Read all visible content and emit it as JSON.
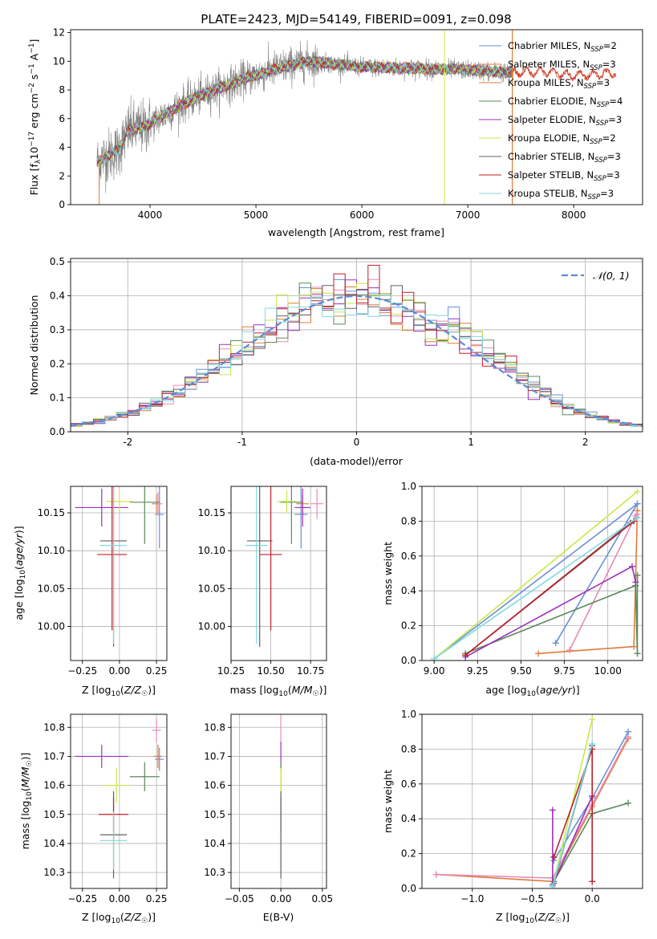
{
  "figure": {
    "title": "PLATE=2423, MJD=54149, FIBERID=0091, z=0.098"
  },
  "chart_data": [
    {
      "id": "spectrum",
      "type": "line",
      "xlabel": "wavelength [Angstrom, rest frame]",
      "ylabel_parts": [
        "Flux [f",
        "λ",
        "10",
        "−17",
        " erg cm",
        "−2",
        " s",
        "−1",
        " A",
        "−1",
        "]"
      ],
      "xlim": [
        3250,
        8650
      ],
      "ylim": [
        0,
        12.2
      ],
      "xticks": [
        4000,
        5000,
        6000,
        7000,
        8000
      ],
      "yticks": [
        0,
        2,
        4,
        6,
        8,
        10,
        12
      ],
      "continuum_model": [
        [
          3500,
          3.0
        ],
        [
          3700,
          3.8
        ],
        [
          3800,
          5.2
        ],
        [
          3950,
          5.4
        ],
        [
          4100,
          6.1
        ],
        [
          4300,
          7.0
        ],
        [
          4600,
          8.0
        ],
        [
          4900,
          8.8
        ],
        [
          5200,
          9.5
        ],
        [
          5500,
          10.0
        ],
        [
          6000,
          9.6
        ],
        [
          6500,
          9.5
        ],
        [
          7000,
          9.4
        ],
        [
          7400,
          9.2
        ],
        [
          7700,
          9.3
        ],
        [
          8000,
          9.0
        ],
        [
          8400,
          9.2
        ]
      ],
      "legend": [
        {
          "label": "Chabrier MILES, N",
          "sub": "SSP",
          "tail": "=2",
          "color": "#6a8fd8"
        },
        {
          "label": "Salpeter MILES, N",
          "sub": "SSP",
          "tail": "=3",
          "color": "#e07b39"
        },
        {
          "label": "Kroupa MILES, N",
          "sub": "SSP",
          "tail": "=3",
          "color": "#e07b39"
        },
        {
          "label": "Chabrier ELODIE, N",
          "sub": "SSP",
          "tail": "=4",
          "color": "#5a8a5a"
        },
        {
          "label": "Salpeter ELODIE, N",
          "sub": "SSP",
          "tail": "=3",
          "color": "#9b30b8"
        },
        {
          "label": "Kroupa ELODIE, N",
          "sub": "SSP",
          "tail": "=2",
          "color": "#c8e84a"
        },
        {
          "label": "Chabrier STELIB, N",
          "sub": "SSP",
          "tail": "=3",
          "color": "#606060"
        },
        {
          "label": "Salpeter STELIB, N",
          "sub": "SSP",
          "tail": "=3",
          "color": "#c0202a"
        },
        {
          "label": "Kroupa STELIB, N",
          "sub": "SSP",
          "tail": "=3",
          "color": "#80d8e0"
        }
      ]
    },
    {
      "id": "residuals",
      "type": "line",
      "xlabel": "(data-model)/error",
      "ylabel": "Normed distribution",
      "xlim": [
        -2.5,
        2.5
      ],
      "ylim": [
        0,
        0.51
      ],
      "xticks": [
        -2,
        -1,
        0,
        1,
        2
      ],
      "yticks": [
        0.0,
        0.1,
        0.2,
        0.3,
        0.4,
        0.5
      ],
      "ytick_labels": [
        "0.0",
        "0.1",
        "0.2",
        "0.3",
        "0.4",
        "0.5"
      ],
      "legend": "𝒩(0, 1)",
      "gaussian_color": "#5b8bd5",
      "step_colors": [
        "#6a8fd8",
        "#e07b39",
        "#e88ab8",
        "#5a8a5a",
        "#9b30b8",
        "#c8e84a",
        "#606060",
        "#c0202a",
        "#80d8e0"
      ]
    },
    {
      "id": "age_vs_Z",
      "type": "scatter",
      "xlabel": "Z [log10(Z/Z☉)]",
      "ylabel": "age  [log10(age/yr)]",
      "xlim": [
        -0.33,
        0.32
      ],
      "ylim": [
        9.955,
        10.185
      ],
      "xticks": [
        -0.25,
        0.0,
        0.25
      ],
      "xtick_labels": [
        "−0.25",
        "0.00",
        "0.25"
      ],
      "yticks": [
        10.0,
        10.05,
        10.1,
        10.15
      ],
      "ytick_labels": [
        "10.00",
        "10.05",
        "10.10",
        "10.15"
      ],
      "points": [
        {
          "x": 0.27,
          "y": 10.148,
          "xerr": 0.03,
          "yerr": 0.045,
          "color": "#6a8fd8"
        },
        {
          "x": 0.25,
          "y": 10.162,
          "xerr": 0.03,
          "yerr": 0.012,
          "color": "#e07b39"
        },
        {
          "x": 0.26,
          "y": 10.162,
          "xerr": 0.03,
          "yerr": 0.015,
          "color": "#e88ab8"
        },
        {
          "x": 0.17,
          "y": 10.164,
          "xerr": 0.1,
          "yerr": 0.055,
          "color": "#5a8a5a"
        },
        {
          "x": -0.12,
          "y": 10.157,
          "xerr": 0.18,
          "yerr": 0.025,
          "color": "#9b30b8"
        },
        {
          "x": 0.0,
          "y": 10.165,
          "xerr": 0.09,
          "yerr": 0.015,
          "color": "#c8e84a"
        },
        {
          "x": -0.04,
          "y": 10.113,
          "xerr": 0.09,
          "yerr": 0.14,
          "color": "#606060"
        },
        {
          "x": -0.05,
          "y": 10.095,
          "xerr": 0.1,
          "yerr": 0.1,
          "color": "#c0202a"
        },
        {
          "x": -0.04,
          "y": 10.107,
          "xerr": 0.09,
          "yerr": 0.13,
          "color": "#80d8e0"
        }
      ]
    },
    {
      "id": "age_vs_mass",
      "type": "scatter",
      "xlabel": "mass [log10(M/M☉)]",
      "ylabel": "",
      "xlim": [
        10.25,
        10.85
      ],
      "ylim": [
        9.955,
        10.185
      ],
      "xticks": [
        10.25,
        10.5,
        10.75
      ],
      "xtick_labels": [
        "10.25",
        "10.50",
        "10.75"
      ],
      "yticks": [
        10.0,
        10.05,
        10.1,
        10.15
      ],
      "ytick_labels": [
        "10.00",
        "10.05",
        "10.10",
        "10.15"
      ],
      "points": [
        {
          "x": 10.69,
          "y": 10.148,
          "xerr": 0.04,
          "yerr": 0.045,
          "color": "#6a8fd8"
        },
        {
          "x": 10.7,
          "y": 10.162,
          "xerr": 0.04,
          "yerr": 0.012,
          "color": "#e07b39"
        },
        {
          "x": 10.79,
          "y": 10.162,
          "xerr": 0.04,
          "yerr": 0.02,
          "color": "#e88ab8"
        },
        {
          "x": 10.63,
          "y": 10.164,
          "xerr": 0.07,
          "yerr": 0.055,
          "color": "#5a8a5a"
        },
        {
          "x": 10.7,
          "y": 10.157,
          "xerr": 0.05,
          "yerr": 0.025,
          "color": "#9b30b8"
        },
        {
          "x": 10.6,
          "y": 10.165,
          "xerr": 0.06,
          "yerr": 0.015,
          "color": "#c8e84a"
        },
        {
          "x": 10.43,
          "y": 10.113,
          "xerr": 0.08,
          "yerr": 0.14,
          "color": "#606060"
        },
        {
          "x": 10.5,
          "y": 10.095,
          "xerr": 0.07,
          "yerr": 0.1,
          "color": "#c0202a"
        },
        {
          "x": 10.41,
          "y": 10.107,
          "xerr": 0.07,
          "yerr": 0.13,
          "color": "#80d8e0"
        }
      ]
    },
    {
      "id": "weight_vs_age",
      "type": "line",
      "xlabel": "age  [log10(age/yr)]",
      "ylabel": "mass weight",
      "xlim": [
        8.93,
        10.2
      ],
      "ylim": [
        0,
        1
      ],
      "xticks": [
        9.0,
        9.25,
        9.5,
        9.75,
        10.0
      ],
      "xtick_labels": [
        "9.00",
        "9.25",
        "9.50",
        "9.75",
        "10.00"
      ],
      "yticks": [
        0,
        0.2,
        0.4,
        0.6,
        0.8,
        1.0
      ],
      "ytick_labels": [
        "0.0",
        "0.2",
        "0.4",
        "0.6",
        "0.8",
        "1.0"
      ],
      "series": [
        {
          "color": "#6a8fd8",
          "x": [
            9.7,
            10.17,
            9.0,
            10.17
          ],
          "y": [
            0.1,
            0.9,
            0.01,
            0.9
          ]
        },
        {
          "color": "#e07b39",
          "x": [
            9.6,
            10.15,
            10.17,
            10.17
          ],
          "y": [
            0.04,
            0.08,
            0.86,
            0.86
          ]
        },
        {
          "color": "#e88ab8",
          "x": [
            9.78,
            10.16,
            10.17
          ],
          "y": [
            0.06,
            0.83,
            0.84
          ]
        },
        {
          "color": "#5a8a5a",
          "x": [
            9.18,
            10.16,
            10.17,
            10.17
          ],
          "y": [
            0.04,
            0.43,
            0.04,
            0.49
          ]
        },
        {
          "color": "#9b30b8",
          "x": [
            9.18,
            10.14,
            10.16
          ],
          "y": [
            0.02,
            0.54,
            0.45
          ]
        },
        {
          "color": "#c8e84a",
          "x": [
            9.0,
            10.17
          ],
          "y": [
            0.01,
            0.97
          ]
        },
        {
          "color": "#606060",
          "x": [
            9.18,
            10.13,
            10.17
          ],
          "y": [
            0.03,
            0.79,
            0.82
          ]
        },
        {
          "color": "#c0202a",
          "x": [
            9.18,
            10.15
          ],
          "y": [
            0.03,
            0.8
          ]
        },
        {
          "color": "#80d8e0",
          "x": [
            9.0,
            10.17
          ],
          "y": [
            0.01,
            0.82
          ]
        }
      ]
    },
    {
      "id": "mass_vs_Z",
      "type": "scatter",
      "xlabel": "Z [log10(Z/Z☉)]",
      "ylabel": "mass [log10(M/M☉)]",
      "xlim": [
        -0.33,
        0.32
      ],
      "ylim": [
        10.245,
        10.845
      ],
      "xticks": [
        -0.25,
        0.0,
        0.25
      ],
      "xtick_labels": [
        "−0.25",
        "0.00",
        "0.25"
      ],
      "yticks": [
        10.3,
        10.4,
        10.5,
        10.6,
        10.7,
        10.8
      ],
      "ytick_labels": [
        "10.3",
        "10.4",
        "10.5",
        "10.6",
        "10.7",
        "10.8"
      ],
      "points": [
        {
          "x": 0.27,
          "y": 10.69,
          "xerr": 0.03,
          "yerr": 0.04,
          "color": "#6a8fd8"
        },
        {
          "x": 0.26,
          "y": 10.7,
          "xerr": 0.03,
          "yerr": 0.04,
          "color": "#e07b39"
        },
        {
          "x": 0.25,
          "y": 10.79,
          "xerr": 0.03,
          "yerr": 0.04,
          "color": "#e88ab8"
        },
        {
          "x": 0.17,
          "y": 10.63,
          "xerr": 0.1,
          "yerr": 0.05,
          "color": "#5a8a5a"
        },
        {
          "x": -0.12,
          "y": 10.7,
          "xerr": 0.18,
          "yerr": 0.04,
          "color": "#9b30b8"
        },
        {
          "x": -0.02,
          "y": 10.6,
          "xerr": 0.09,
          "yerr": 0.06,
          "color": "#c8e84a"
        },
        {
          "x": -0.04,
          "y": 10.43,
          "xerr": 0.09,
          "yerr": 0.15,
          "color": "#606060"
        },
        {
          "x": -0.04,
          "y": 10.5,
          "xerr": 0.1,
          "yerr": 0.06,
          "color": "#c0202a"
        },
        {
          "x": -0.04,
          "y": 10.41,
          "xerr": 0.09,
          "yerr": 0.1,
          "color": "#80d8e0"
        }
      ]
    },
    {
      "id": "mass_vs_EBV",
      "type": "scatter",
      "xlabel": "E(B-V)",
      "ylabel": "",
      "xlim": [
        -0.06,
        0.055
      ],
      "ylim": [
        10.245,
        10.845
      ],
      "xticks": [
        -0.05,
        0.0,
        0.05
      ],
      "xtick_labels": [
        "−0.05",
        "0.00",
        "0.05"
      ],
      "yticks": [
        10.3,
        10.4,
        10.5,
        10.6,
        10.7,
        10.8
      ],
      "ytick_labels": [
        "10.3",
        "10.4",
        "10.5",
        "10.6",
        "10.7",
        "10.8"
      ],
      "points": [
        {
          "x": 0.0,
          "y": 10.79,
          "xerr": 0.0,
          "yerr": 0.05,
          "color": "#e88ab8"
        },
        {
          "x": 0.0,
          "y": 10.7,
          "xerr": 0.0,
          "yerr": 0.05,
          "color": "#9b30b8"
        },
        {
          "x": 0.0,
          "y": 10.63,
          "xerr": 0.0,
          "yerr": 0.05,
          "color": "#5a8a5a"
        },
        {
          "x": 0.0,
          "y": 10.6,
          "xerr": 0.0,
          "yerr": 0.06,
          "color": "#c8e84a"
        },
        {
          "x": 0.0,
          "y": 10.5,
          "xerr": 0.0,
          "yerr": 0.06,
          "color": "#c0202a"
        },
        {
          "x": 0.0,
          "y": 10.41,
          "xerr": 0.0,
          "yerr": 0.1,
          "color": "#80d8e0"
        },
        {
          "x": 0.0,
          "y": 10.43,
          "xerr": 0.0,
          "yerr": 0.15,
          "color": "#606060"
        }
      ]
    },
    {
      "id": "weight_vs_Z",
      "type": "line",
      "xlabel": "Z [log10(Z/Z☉)]",
      "ylabel": "mass weight",
      "xlim": [
        -1.42,
        0.42
      ],
      "ylim": [
        0,
        1
      ],
      "xticks": [
        -1.0,
        -0.5,
        0.0
      ],
      "xtick_labels": [
        "−1.0",
        "−0.5",
        "0.0"
      ],
      "yticks": [
        0,
        0.2,
        0.4,
        0.6,
        0.8,
        1.0
      ],
      "ytick_labels": [
        "0.0",
        "0.2",
        "0.4",
        "0.6",
        "0.8",
        "1.0"
      ],
      "series": [
        {
          "color": "#e07b39",
          "x": [
            -1.3,
            -0.33,
            0.0,
            0.3
          ],
          "y": [
            0.08,
            0.04,
            0.47,
            0.86
          ]
        },
        {
          "color": "#e88ab8",
          "x": [
            -1.3,
            -0.33,
            0.0,
            0.3
          ],
          "y": [
            0.08,
            0.06,
            0.48,
            0.87
          ]
        },
        {
          "color": "#6a8fd8",
          "x": [
            -0.32,
            0.0,
            0.3
          ],
          "y": [
            0.16,
            0.52,
            0.9
          ]
        },
        {
          "color": "#5a8a5a",
          "x": [
            -0.32,
            0.0,
            0.3
          ],
          "y": [
            0.04,
            0.43,
            0.49
          ]
        },
        {
          "color": "#9b30b8",
          "x": [
            -0.33,
            -0.33,
            0.0,
            0.0
          ],
          "y": [
            0.45,
            0.02,
            0.53,
            0.53
          ]
        },
        {
          "color": "#c8e84a",
          "x": [
            -0.33,
            0.0
          ],
          "y": [
            0.01,
            0.97
          ]
        },
        {
          "color": "#606060",
          "x": [
            -0.32,
            0.0
          ],
          "y": [
            0.03,
            0.82
          ]
        },
        {
          "color": "#c0202a",
          "x": [
            -0.32,
            0.0,
            0.0
          ],
          "y": [
            0.18,
            0.8,
            0.04
          ]
        },
        {
          "color": "#80d8e0",
          "x": [
            -0.33,
            0.0
          ],
          "y": [
            0.01,
            0.83
          ]
        }
      ]
    }
  ]
}
